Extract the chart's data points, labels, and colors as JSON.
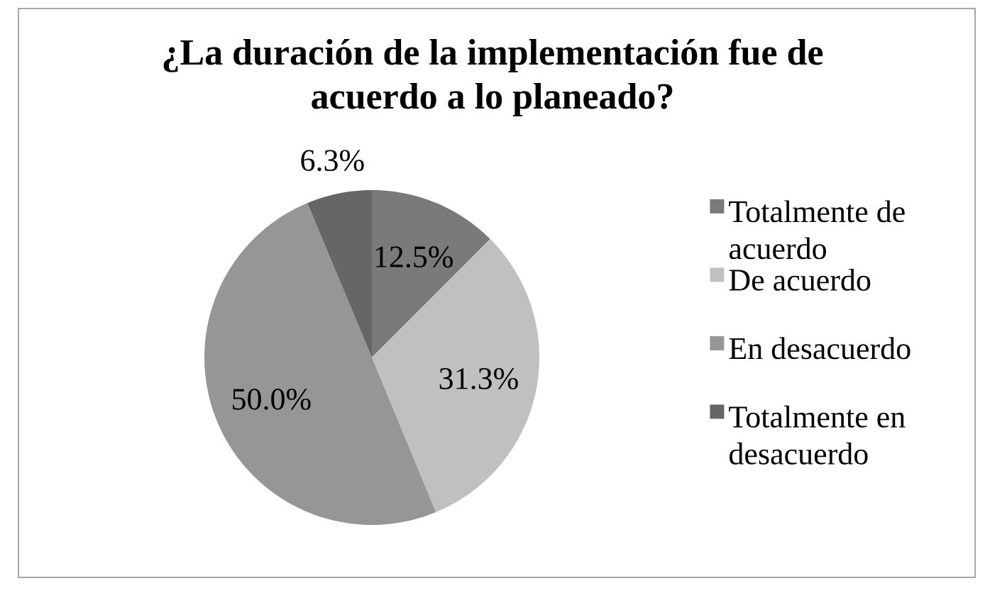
{
  "chart_data": {
    "type": "pie",
    "title": "¿La duración de la implementación fue de acuerdo a lo planeado?",
    "categories": [
      "Totalmente de acuerdo",
      "De acuerdo",
      "En desacuerdo",
      "Totalmente en desacuerdo"
    ],
    "values": [
      12.5,
      31.3,
      50.0,
      6.3
    ],
    "colors": [
      "#7a7a7a",
      "#c0c0c0",
      "#969696",
      "#666666"
    ],
    "value_labels": [
      "12.5%",
      "31.3%",
      "50.0%",
      "6.3%"
    ],
    "legend": "right"
  }
}
